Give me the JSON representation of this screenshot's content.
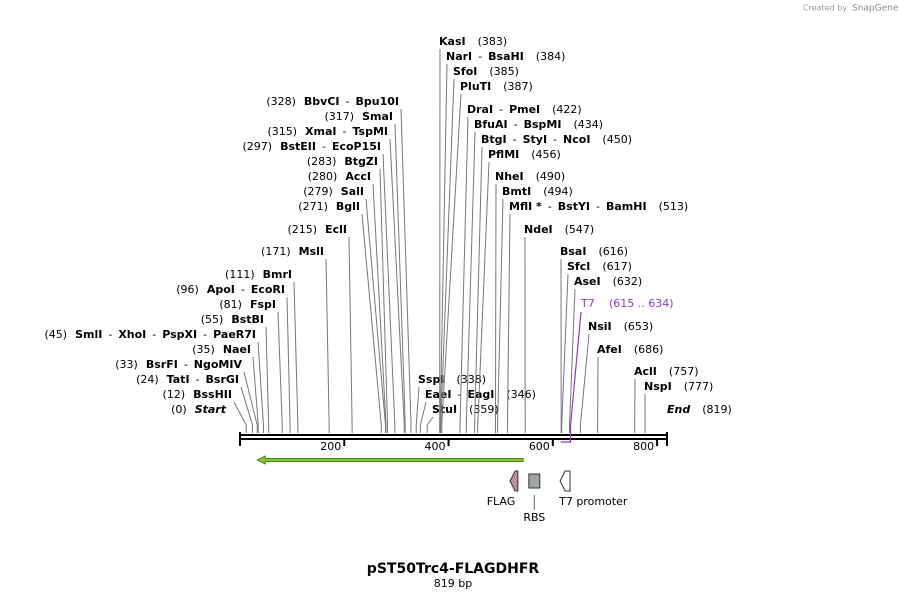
{
  "logo": {
    "prefix": "Created by",
    "brand": "SnapGene"
  },
  "title": "pST50Trc4-FLAGDHFR",
  "length_label": "819 bp",
  "name_separator": "-",
  "ruler": {
    "lim": [
      0,
      819
    ],
    "ticks": [
      200,
      400,
      600,
      800
    ]
  },
  "ends": [
    {
      "name": "Start",
      "position": 0,
      "position_label": "(0)"
    },
    {
      "name": "End",
      "position": 819,
      "position_label": "(819)"
    }
  ],
  "sites": [
    {
      "names": [
        "BssHII"
      ],
      "position": 12,
      "position_label": "(12)"
    },
    {
      "names": [
        "TatI",
        "BsrGI"
      ],
      "position": 24,
      "position_label": "(24)"
    },
    {
      "names": [
        "BsrFI",
        "NgoMIV"
      ],
      "position": 33,
      "position_label": "(33)"
    },
    {
      "names": [
        "NaeI"
      ],
      "position": 35,
      "position_label": "(35)"
    },
    {
      "names": [
        "SmlI",
        "XhoI",
        "PspXI",
        "PaeR7I"
      ],
      "position": 45,
      "position_label": "(45)"
    },
    {
      "names": [
        "BstBI"
      ],
      "position": 55,
      "position_label": "(55)"
    },
    {
      "names": [
        "FspI"
      ],
      "position": 81,
      "position_label": "(81)"
    },
    {
      "names": [
        "ApoI",
        "EcoRI"
      ],
      "position": 96,
      "position_label": "(96)"
    },
    {
      "names": [
        "BmrI"
      ],
      "position": 111,
      "position_label": "(111)"
    },
    {
      "names": [
        "MslI"
      ],
      "position": 171,
      "position_label": "(171)"
    },
    {
      "names": [
        "EclI"
      ],
      "position": 215,
      "position_label": "(215)"
    },
    {
      "names": [
        "BglI"
      ],
      "position": 271,
      "position_label": "(271)"
    },
    {
      "names": [
        "SalI"
      ],
      "position": 279,
      "position_label": "(279)"
    },
    {
      "names": [
        "AccI"
      ],
      "position": 280,
      "position_label": "(280)"
    },
    {
      "names": [
        "BtgZI"
      ],
      "position": 283,
      "position_label": "(283)"
    },
    {
      "names": [
        "BstEII",
        "EcoP15I"
      ],
      "position": 297,
      "position_label": "(297)"
    },
    {
      "names": [
        "XmaI",
        "TspMI"
      ],
      "position": 315,
      "position_label": "(315)"
    },
    {
      "names": [
        "SmaI"
      ],
      "position": 317,
      "position_label": "(317)"
    },
    {
      "names": [
        "BbvCI",
        "Bpu10I"
      ],
      "position": 328,
      "position_label": "(328)"
    },
    {
      "names": [
        "SspI"
      ],
      "position": 338,
      "position_label": "(338)"
    },
    {
      "names": [
        "EaeI",
        "EagI"
      ],
      "position": 346,
      "position_label": "(346)"
    },
    {
      "names": [
        "StuI"
      ],
      "position": 359,
      "position_label": "(359)"
    },
    {
      "names": [
        "KasI"
      ],
      "position": 383,
      "position_label": "(383)"
    },
    {
      "names": [
        "NarI",
        "BsaHI"
      ],
      "position": 384,
      "position_label": "(384)"
    },
    {
      "names": [
        "SfoI"
      ],
      "position": 385,
      "position_label": "(385)"
    },
    {
      "names": [
        "PluTI"
      ],
      "position": 387,
      "position_label": "(387)"
    },
    {
      "names": [
        "DraI",
        "PmeI"
      ],
      "position": 422,
      "position_label": "(422)"
    },
    {
      "names": [
        "BfuAI",
        "BspMI"
      ],
      "position": 434,
      "position_label": "(434)"
    },
    {
      "names": [
        "BtgI",
        "StyI",
        "NcoI"
      ],
      "position": 450,
      "position_label": "(450)"
    },
    {
      "names": [
        "PflMI"
      ],
      "position": 456,
      "position_label": "(456)"
    },
    {
      "names": [
        "NheI"
      ],
      "position": 490,
      "position_label": "(490)"
    },
    {
      "names": [
        "BmtI"
      ],
      "position": 494,
      "position_label": "(494)"
    },
    {
      "names": [
        "MflI *",
        "BstYI",
        "BamHI"
      ],
      "position": 513,
      "position_label": "(513)"
    },
    {
      "names": [
        "NdeI"
      ],
      "position": 547,
      "position_label": "(547)"
    },
    {
      "names": [
        "BsaI"
      ],
      "position": 616,
      "position_label": "(616)"
    },
    {
      "names": [
        "SfcI"
      ],
      "position": 617,
      "position_label": "(617)"
    },
    {
      "names": [
        "AseI"
      ],
      "position": 632,
      "position_label": "(632)"
    },
    {
      "names": [
        "NsiI"
      ],
      "position": 653,
      "position_label": "(653)"
    },
    {
      "names": [
        "AfeI"
      ],
      "position": 686,
      "position_label": "(686)"
    },
    {
      "names": [
        "AclI"
      ],
      "position": 757,
      "position_label": "(757)"
    },
    {
      "names": [
        "NspI"
      ],
      "position": 777,
      "position_label": "(777)"
    }
  ],
  "primer": {
    "name": "T7",
    "range": [
      615,
      634
    ],
    "range_label": "(615 .. 634)",
    "color": "#9933cc"
  },
  "features": [
    {
      "start": 33,
      "end": 543,
      "direction": "left",
      "color": "#7ec832"
    },
    {
      "name": "FLAG",
      "start": 518,
      "end": 533,
      "direction": "left",
      "color": "#c48aa8"
    },
    {
      "name": "RBS",
      "start": 554,
      "end": 575,
      "direction": "none",
      "color": "#a0a4ae"
    },
    {
      "name": "T7 promoter",
      "start": 614,
      "end": 633,
      "direction": "left",
      "color": "#ffffff"
    }
  ]
}
